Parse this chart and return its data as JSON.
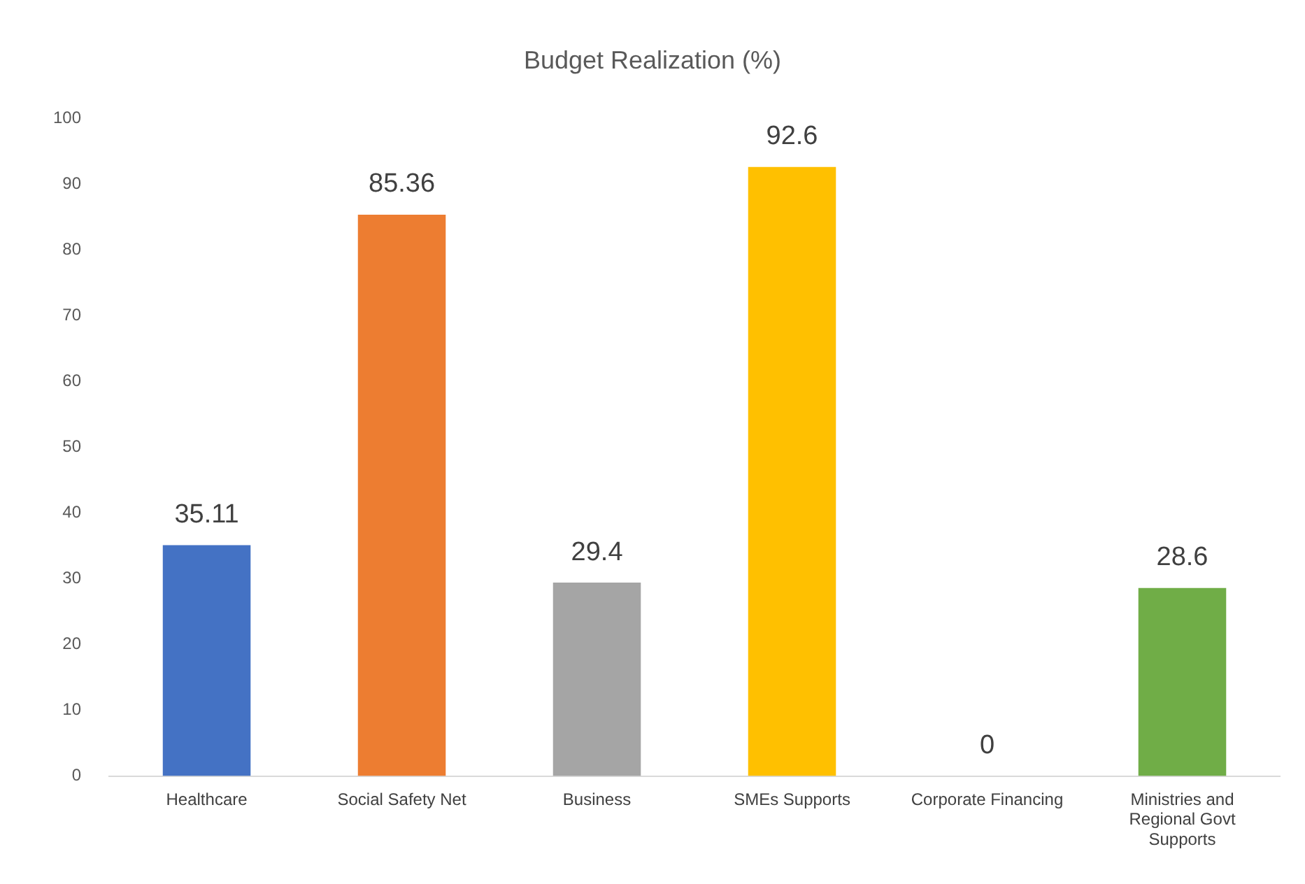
{
  "chart_data": {
    "type": "bar",
    "title": "Budget Realization (%)",
    "categories": [
      "Healthcare",
      "Social Safety Net",
      "Business",
      "SMEs Supports",
      "Corporate Financing",
      "Ministries and Regional Govt Supports"
    ],
    "values": [
      35.11,
      85.36,
      29.4,
      92.6,
      0,
      28.6
    ],
    "colors": [
      "#4472c4",
      "#ed7d31",
      "#a5a5a5",
      "#ffc000",
      "#5b9bd5",
      "#70ad47"
    ],
    "ylim": [
      0,
      100
    ],
    "yticks": [
      0,
      10,
      20,
      30,
      40,
      50,
      60,
      70,
      80,
      90,
      100
    ],
    "grid": false,
    "legend": false,
    "data_labels": true
  }
}
